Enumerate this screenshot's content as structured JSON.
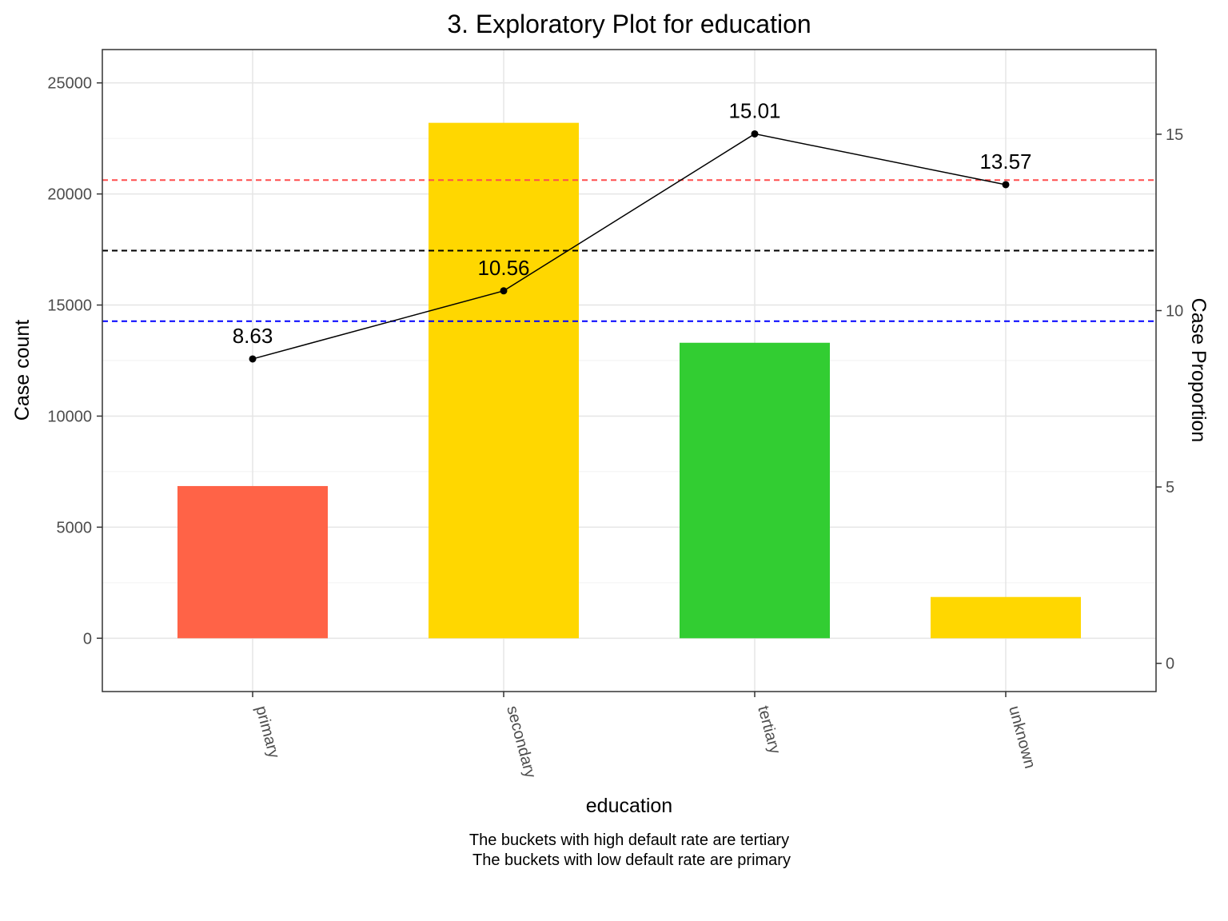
{
  "chart_data": {
    "type": "bar",
    "title": "3. Exploratory Plot for education",
    "xlabel": "education",
    "ylabel": "Case count",
    "y2label": "Case Proportion",
    "categories": [
      "primary",
      "secondary",
      "tertiary",
      "unknown"
    ],
    "values": [
      6851,
      23202,
      13301,
      1857
    ],
    "bar_colors": [
      "#ff6347",
      "#ffd700",
      "#32cd32",
      "#ffd700"
    ],
    "ylim": [
      -2400,
      26500
    ],
    "yticks": [
      0,
      5000,
      10000,
      15000,
      20000,
      25000
    ],
    "line_series": {
      "values": [
        8.63,
        10.56,
        15.01,
        13.57
      ],
      "labels": [
        "8.63",
        "10.56",
        "15.01",
        "13.57"
      ],
      "color": "#000000"
    },
    "y2lim": [
      -0.8,
      17.4
    ],
    "y2ticks": [
      0,
      5,
      10,
      15
    ],
    "reference_lines": [
      {
        "y2": 13.7,
        "color": "#ff4d4d"
      },
      {
        "y2": 11.7,
        "color": "#000000"
      },
      {
        "y2": 9.7,
        "color": "#0000ff"
      }
    ],
    "grid": true,
    "caption": [
      "The buckets with high default rate are tertiary",
      "The buckets with low default rate are primary"
    ]
  }
}
